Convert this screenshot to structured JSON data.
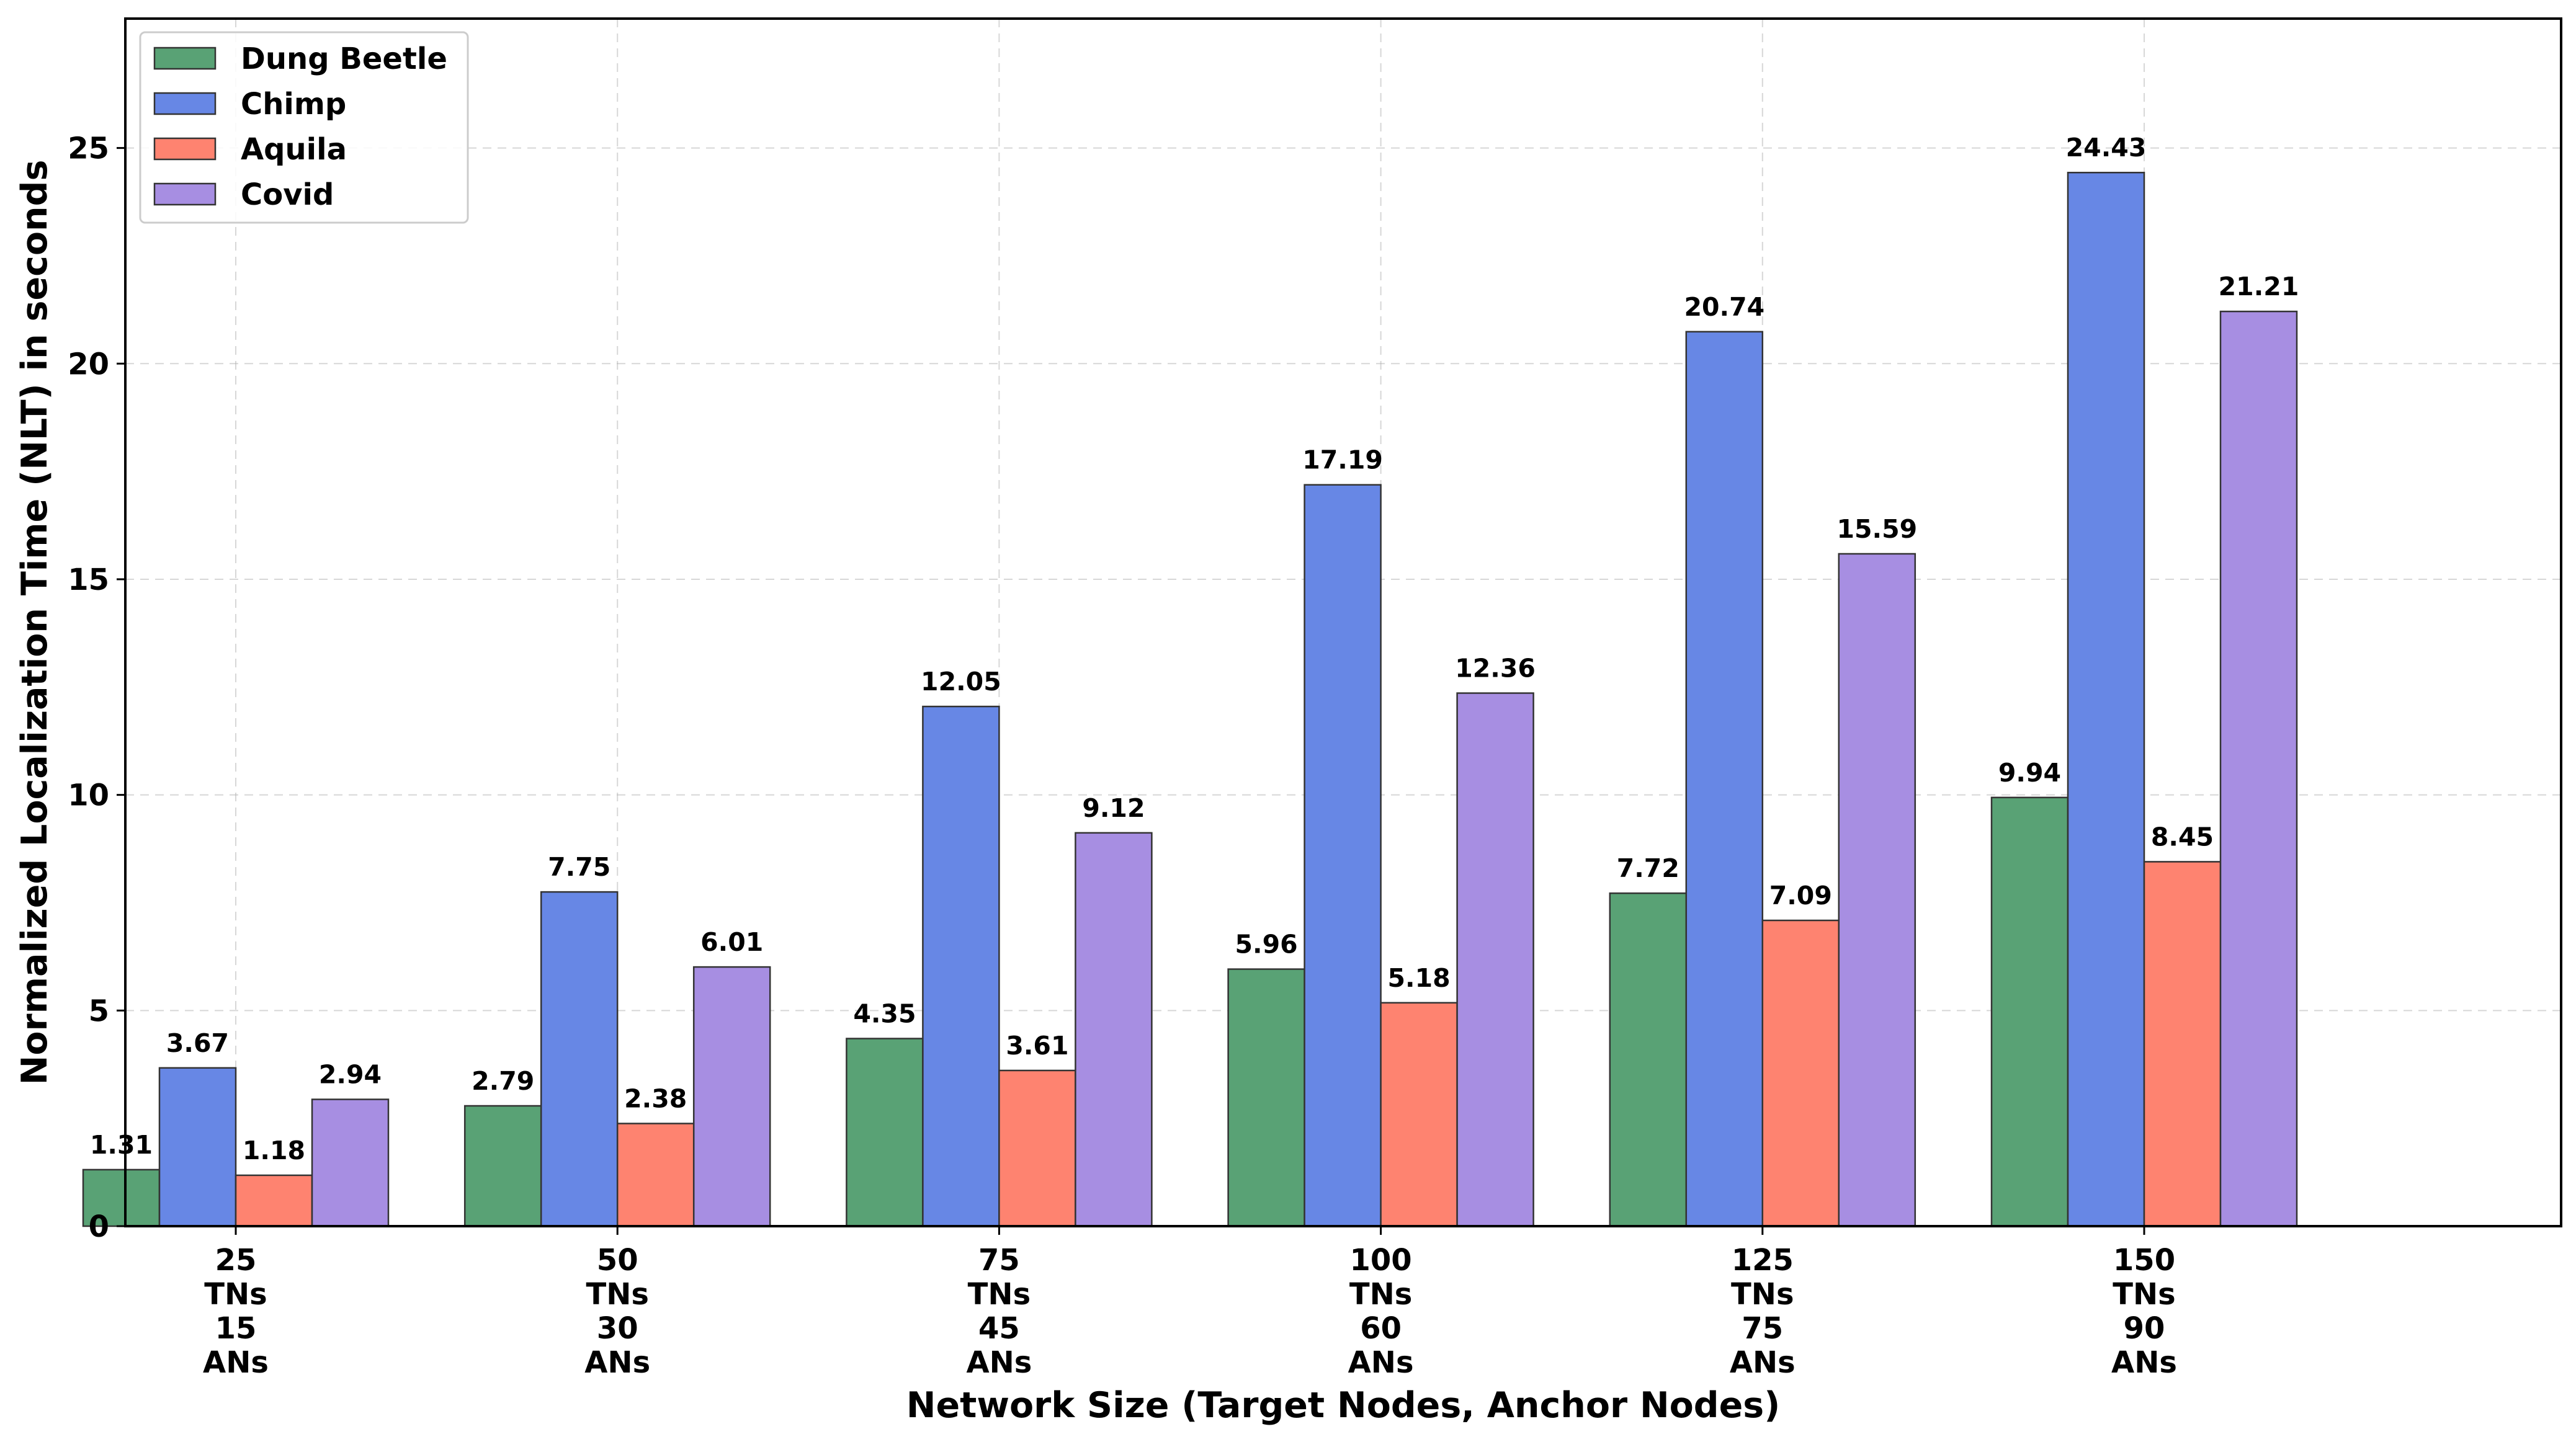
{
  "chart_data": {
    "type": "bar",
    "title": "",
    "xlabel": "Network Size (Target Nodes, Anchor Nodes)",
    "ylabel": "Normalized Localization Time (NLT) in seconds",
    "ylim": [
      0,
      28
    ],
    "yticks": [
      "0",
      "5",
      "10",
      "15",
      "20",
      "25"
    ],
    "categories": [
      [
        "25",
        "TNs",
        "15",
        "ANs"
      ],
      [
        "50",
        "TNs",
        "30",
        "ANs"
      ],
      [
        "75",
        "TNs",
        "45",
        "ANs"
      ],
      [
        "100",
        "TNs",
        "60",
        "ANs"
      ],
      [
        "125",
        "TNs",
        "75",
        "ANs"
      ],
      [
        "150",
        "TNs",
        "90",
        "ANs"
      ]
    ],
    "series": [
      {
        "name": "Dung Beetle",
        "color": "#59a275",
        "values": [
          1.31,
          2.79,
          4.35,
          5.96,
          7.72,
          9.94
        ],
        "labels": [
          "1.31",
          "2.79",
          "4.35",
          "5.96",
          "7.72",
          "9.94"
        ]
      },
      {
        "name": "Chimp",
        "color": "#6787e5",
        "values": [
          3.67,
          7.75,
          12.05,
          17.19,
          20.74,
          24.43
        ],
        "labels": [
          "3.67",
          "7.75",
          "12.05",
          "17.19",
          "20.74",
          "24.43"
        ]
      },
      {
        "name": "Aquila",
        "color": "#fe8370",
        "values": [
          1.18,
          2.38,
          3.61,
          5.18,
          7.09,
          8.45
        ],
        "labels": [
          "1.18",
          "2.38",
          "3.61",
          "5.18",
          "7.09",
          "8.45"
        ]
      },
      {
        "name": "Covid",
        "color": "#a78ee2",
        "values": [
          2.94,
          6.01,
          9.12,
          12.36,
          15.59,
          21.21
        ],
        "labels": [
          "2.94",
          "6.01",
          "9.12",
          "12.36",
          "15.59",
          "21.21"
        ]
      }
    ],
    "grid": true,
    "legend_position": "top-left"
  }
}
